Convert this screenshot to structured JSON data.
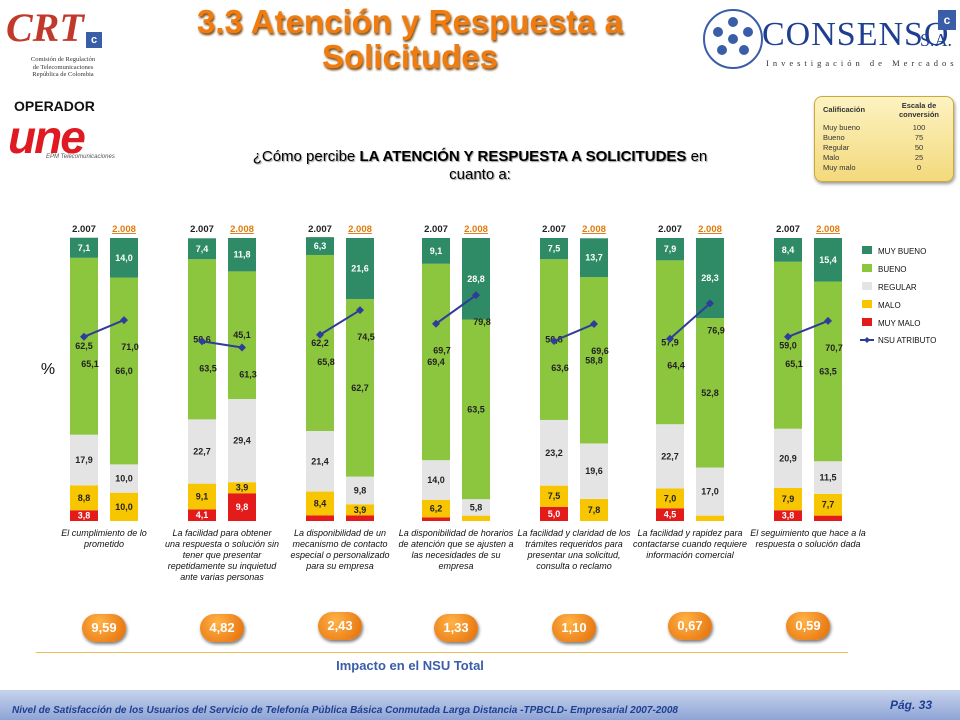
{
  "title": "3.3 Atención y Respuesta a Solicitudes",
  "operator_label": "OPERADOR",
  "operator_logo": {
    "name": "une",
    "subtitle": "EPM Telecomunicaciones",
    "color": "#e01a22"
  },
  "crt_logo": {
    "mark": "CRT",
    "lines": [
      "Comisión de Regulación",
      "de Telecomunicaciones",
      "República de Colombia"
    ]
  },
  "consenso_logo": {
    "name": "CONSENSO",
    "suffix": "S.A.",
    "tagline": "Investigación de Mercados"
  },
  "question": {
    "prefix": "¿Cómo percibe ",
    "bold": "LA ATENCIÓN Y RESPUESTA A SOLICITUDES",
    "suffix": " en cuanto a:"
  },
  "conversion_table": {
    "header_left": "Calificación",
    "header_right": "Escala de conversión",
    "rows": [
      {
        "label": "Muy bueno",
        "value": "100"
      },
      {
        "label": "Bueno",
        "value": "75"
      },
      {
        "label": "Regular",
        "value": "50"
      },
      {
        "label": "Malo",
        "value": "25"
      },
      {
        "label": "Muy malo",
        "value": "0"
      }
    ]
  },
  "y_axis_label": "%",
  "impact_label": "Impacto en el NSU Total",
  "footer": "Nivel de Satisfacción de los Usuarios del Servicio de Telefonía Pública Básica Conmutada Larga Distancia -TPBCLD- Empresarial 2007-2008",
  "page": "Pág. 33",
  "colors": {
    "muy_bueno": "#2e8b66",
    "bueno": "#8cc63f",
    "regular": "#e4e4e4",
    "malo": "#f7c600",
    "muy_malo": "#e31b1b",
    "nsu": "#2e3d99",
    "bubble": "#f07c10"
  },
  "chart_data": {
    "type": "bar",
    "stacked": true,
    "ylabel": "%",
    "ylim": [
      0,
      100
    ],
    "legend_position": "right",
    "years": [
      "2.007",
      "2.008"
    ],
    "series_order": [
      "MUY BUENO",
      "BUENO",
      "REGULAR",
      "MALO",
      "MUY MALO"
    ],
    "line_series": "NSU ATRIBUTO",
    "categories": [
      {
        "label": "El cumplimiento de lo prometido",
        "impact": "9,59",
        "bars": [
          {
            "year": "2.007",
            "muy_malo": 3.8,
            "malo": 8.8,
            "regular": 17.9,
            "bueno": 62.5,
            "muy_bueno": 7.1,
            "nsu": 65.1,
            "labels": {
              "muy_malo": "3,8",
              "malo": "8,8",
              "regular": "17,9",
              "bueno": "62,5",
              "muy_bueno": "7,1",
              "nsu": "65,1"
            }
          },
          {
            "year": "2.008",
            "muy_malo": 0,
            "malo": 10.0,
            "regular": 10.0,
            "bueno": 66.0,
            "muy_bueno": 14.0,
            "nsu": 71.0,
            "labels": {
              "muy_malo": "",
              "malo": "10,0",
              "regular": "10,0",
              "bueno": "66,0",
              "muy_bueno": "14,0",
              "nsu": "71,0"
            }
          }
        ]
      },
      {
        "label": "La facilidad para obtener una respuesta o solución sin tener que presentar repetidamente su inquietud ante varias personas",
        "impact": "4,82",
        "bars": [
          {
            "year": "2.007",
            "muy_malo": 4.1,
            "malo": 9.1,
            "regular": 22.7,
            "bueno": 56.6,
            "muy_bueno": 7.4,
            "nsu": 63.5,
            "labels": {
              "muy_malo": "4,1",
              "malo": "9,1",
              "regular": "22,7",
              "bueno": "56,6",
              "muy_bueno": "7,4",
              "nsu": "63,5"
            }
          },
          {
            "year": "2.008",
            "muy_malo": 9.8,
            "malo": 3.9,
            "regular": 29.4,
            "bueno": 45.1,
            "muy_bueno": 11.8,
            "nsu": 61.3,
            "labels": {
              "muy_malo": "9,8",
              "malo": "3,9",
              "regular": "29,4",
              "bueno": "45,1",
              "muy_bueno": "11,8",
              "nsu": "61,3"
            }
          }
        ]
      },
      {
        "label": "La disponibilidad de un mecanismo de contacto especial o personalizado para su empresa",
        "impact": "2,43",
        "bars": [
          {
            "year": "2.007",
            "muy_malo": 2.0,
            "malo": 8.4,
            "regular": 21.4,
            "bueno": 62.2,
            "muy_bueno": 6.3,
            "nsu": 65.8,
            "labels": {
              "muy_malo": "",
              "malo": "8,4",
              "regular": "21,4",
              "bueno": "62,2",
              "muy_bueno": "6,3",
              "nsu": "65,8"
            }
          },
          {
            "year": "2.008",
            "muy_malo": 2.0,
            "malo": 3.9,
            "regular": 9.8,
            "bueno": 62.7,
            "muy_bueno": 21.6,
            "nsu": 74.5,
            "labels": {
              "muy_malo": "",
              "malo": "3,9",
              "regular": "9,8",
              "bueno": "62,7",
              "muy_bueno": "21,6",
              "nsu": "74,5"
            }
          }
        ]
      },
      {
        "label": "La disponibilidad de horarios de atención que se ajusten a las necesidades de su empresa",
        "impact": "1,33",
        "bars": [
          {
            "year": "2.007",
            "muy_malo": 1.3,
            "malo": 6.2,
            "regular": 14.0,
            "bueno": 69.4,
            "muy_bueno": 9.1,
            "nsu": 69.7,
            "labels": {
              "muy_malo": "",
              "malo": "6,2",
              "regular": "14,0",
              "bueno": "69,4",
              "muy_bueno": "9,1",
              "nsu": "69,7"
            }
          },
          {
            "year": "2.008",
            "muy_malo": 0,
            "malo": 1.9,
            "regular": 5.8,
            "bueno": 63.5,
            "muy_bueno": 28.8,
            "nsu": 79.8,
            "labels": {
              "muy_malo": "",
              "malo": "",
              "regular": "5,8",
              "bueno": "63,5",
              "muy_bueno": "28,8",
              "nsu": "79,8"
            }
          }
        ]
      },
      {
        "label": "La facilidad y claridad de los trámites requeridos para presentar una solicitud, consulta o reclamo",
        "impact": "1,10",
        "bars": [
          {
            "year": "2.007",
            "muy_malo": 5.0,
            "malo": 7.5,
            "regular": 23.2,
            "bueno": 56.8,
            "muy_bueno": 7.5,
            "nsu": 63.6,
            "labels": {
              "muy_malo": "5,0",
              "malo": "7,5",
              "regular": "23,2",
              "bueno": "56,8",
              "muy_bueno": "7,5",
              "nsu": "63,6"
            }
          },
          {
            "year": "2.008",
            "muy_malo": 0,
            "malo": 7.8,
            "regular": 19.6,
            "bueno": 58.8,
            "muy_bueno": 13.7,
            "nsu": 69.6,
            "labels": {
              "muy_malo": "",
              "malo": "7,8",
              "regular": "19,6",
              "bueno": "58,8",
              "muy_bueno": "13,7",
              "nsu": "69,6"
            }
          }
        ]
      },
      {
        "label": "La facilidad y rapidez para contactarse cuando requiere información comercial",
        "impact": "0,67",
        "bars": [
          {
            "year": "2.007",
            "muy_malo": 4.5,
            "malo": 7.0,
            "regular": 22.7,
            "bueno": 57.9,
            "muy_bueno": 7.9,
            "nsu": 64.4,
            "labels": {
              "muy_malo": "4,5",
              "malo": "7,0",
              "regular": "22,7",
              "bueno": "57,9",
              "muy_bueno": "7,9",
              "nsu": "64,4"
            }
          },
          {
            "year": "2.008",
            "muy_malo": 0,
            "malo": 1.9,
            "regular": 17.0,
            "bueno": 52.8,
            "muy_bueno": 28.3,
            "nsu": 76.9,
            "labels": {
              "muy_malo": "",
              "malo": "",
              "regular": "17,0",
              "bueno": "52,8",
              "muy_bueno": "28,3",
              "nsu": "76,9"
            }
          }
        ]
      },
      {
        "label": "El seguimiento que hace a la respuesta o solución dada",
        "impact": "0,59",
        "bars": [
          {
            "year": "2.007",
            "muy_malo": 3.8,
            "malo": 7.9,
            "regular": 20.9,
            "bueno": 59.0,
            "muy_bueno": 8.4,
            "nsu": 65.1,
            "labels": {
              "muy_malo": "3,8",
              "malo": "7,9",
              "regular": "20,9",
              "bueno": "59,0",
              "muy_bueno": "8,4",
              "nsu": "65,1"
            }
          },
          {
            "year": "2.008",
            "muy_malo": 1.9,
            "malo": 7.7,
            "regular": 11.5,
            "bueno": 63.5,
            "muy_bueno": 15.4,
            "nsu": 70.7,
            "labels": {
              "muy_malo": "",
              "malo": "7,7",
              "regular": "11,5",
              "bueno": "63,5",
              "muy_bueno": "15,4",
              "nsu": "70,7"
            }
          }
        ]
      }
    ]
  }
}
